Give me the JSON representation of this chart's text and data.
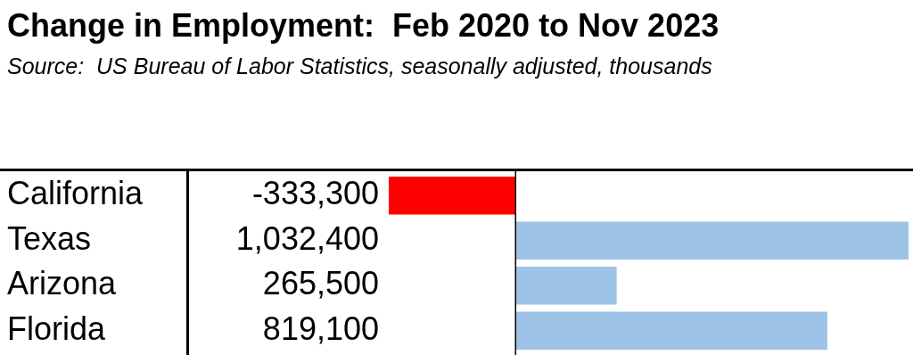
{
  "chart_data": {
    "type": "bar",
    "orientation": "horizontal",
    "title": "Change in Employment:  Feb 2020 to Nov 2023",
    "annotations": [
      "Source:  US Bureau of Labor Statistics, seasonally adjusted, thousands"
    ],
    "categories": [
      "California",
      "Texas",
      "Arizona",
      "Florida"
    ],
    "values": [
      -333300,
      1032400,
      265500,
      819100
    ],
    "colors": [
      "#ff0000",
      "#9dc3e6",
      "#9dc3e6",
      "#9dc3e6"
    ],
    "value_labels": [
      "-333,300",
      "1,032,400",
      "265,500",
      "819,100"
    ]
  }
}
